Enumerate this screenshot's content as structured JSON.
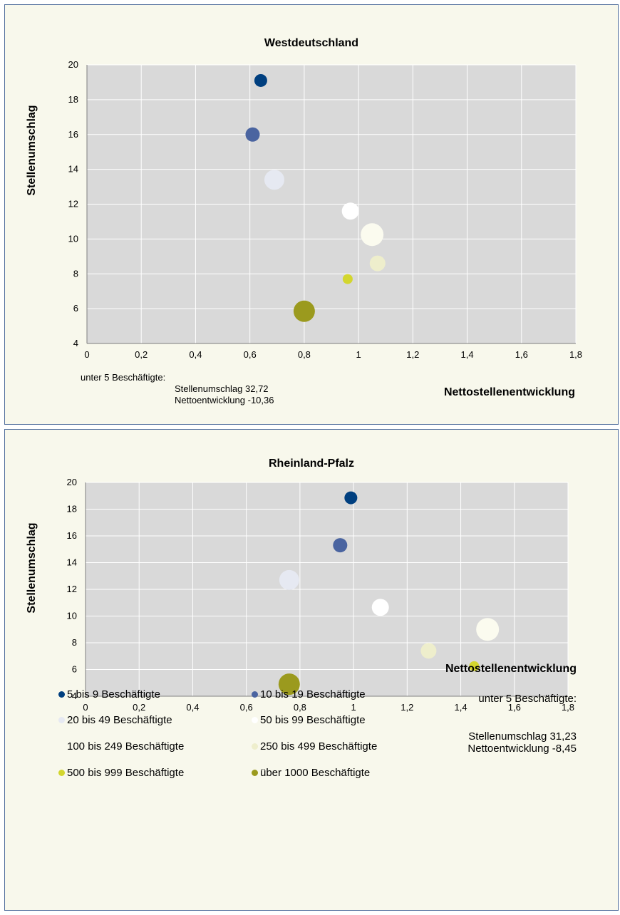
{
  "series_styles": [
    {
      "name": "5 bis 9 Beschäftigte",
      "color": "#003f7f",
      "size": 9
    },
    {
      "name": "10 bis 19 Beschäftigte",
      "color": "#4a64a0",
      "size": 10
    },
    {
      "name": "20 bis 49 Beschäftigte",
      "color": "#e6e9f2",
      "size": 14
    },
    {
      "name": "50 bis 99 Beschäftigte",
      "color": "#ffffff",
      "size": 12
    },
    {
      "name": "100 bis 249 Beschäftigte",
      "color": "#fbfbef",
      "size": 16
    },
    {
      "name": "250 bis 499 Beschäftigte",
      "color": "#eeeecc",
      "size": 11
    },
    {
      "name": "500 bis 999 Beschäftigte",
      "color": "#d3d62e",
      "size": 7
    },
    {
      "name": "über 1000 Beschäftigte",
      "color": "#9b9a1e",
      "size": 15
    }
  ],
  "chart_data": [
    {
      "type": "scatter",
      "title": "Westdeutschland",
      "xlabel": "Nettostellenentwicklung",
      "ylabel": "Stellenumschlag",
      "xlim": [
        0,
        1.8
      ],
      "ylim": [
        4,
        20
      ],
      "x_ticks": [
        "0",
        "0,2",
        "0,4",
        "0,6",
        "0,8",
        "1",
        "1,2",
        "1,4",
        "1,6",
        "1,8"
      ],
      "y_ticks": [
        "4",
        "6",
        "8",
        "10",
        "12",
        "14",
        "16",
        "18",
        "20"
      ],
      "grid": true,
      "series": [
        {
          "name": "5 bis 9 Beschäftigte",
          "x": 0.64,
          "y": 19.1
        },
        {
          "name": "10 bis 19 Beschäftigte",
          "x": 0.61,
          "y": 16.0
        },
        {
          "name": "20 bis 49 Beschäftigte",
          "x": 0.69,
          "y": 13.4
        },
        {
          "name": "50 bis 99 Beschäftigte",
          "x": 0.97,
          "y": 11.6
        },
        {
          "name": "100 bis 249 Beschäftigte",
          "x": 1.05,
          "y": 10.25
        },
        {
          "name": "250 bis 499 Beschäftigte",
          "x": 1.07,
          "y": 8.6
        },
        {
          "name": "500 bis 999 Beschäftigte",
          "x": 0.96,
          "y": 7.7
        },
        {
          "name": "über 1000 Beschäftigte",
          "x": 0.8,
          "y": 5.85
        }
      ],
      "annotation": {
        "header": "unter 5 Beschäftigte:",
        "line1": "Stellenumschlag 32,72",
        "line2": "Nettoentwicklung -10,36"
      }
    },
    {
      "type": "scatter",
      "title": "Rheinland-Pfalz",
      "xlabel": "Nettostellenentwicklung",
      "ylabel": "Stellenumschlag",
      "xlim": [
        0,
        1.8
      ],
      "ylim": [
        4,
        20
      ],
      "x_ticks": [
        "0",
        "0,2",
        "0,4",
        "0,6",
        "0,8",
        "1",
        "1,2",
        "1,4",
        "1,6",
        "1,8"
      ],
      "y_ticks": [
        "4",
        "6",
        "8",
        "10",
        "12",
        "14",
        "16",
        "18",
        "20"
      ],
      "grid": true,
      "series": [
        {
          "name": "5 bis 9 Beschäftigte",
          "x": 0.99,
          "y": 18.85
        },
        {
          "name": "10 bis 19 Beschäftigte",
          "x": 0.95,
          "y": 15.3
        },
        {
          "name": "20 bis 49 Beschäftigte",
          "x": 0.76,
          "y": 12.7
        },
        {
          "name": "50 bis 99 Beschäftigte",
          "x": 1.1,
          "y": 10.65
        },
        {
          "name": "100 bis 249 Beschäftigte",
          "x": 1.5,
          "y": 9.0
        },
        {
          "name": "250 bis 499 Beschäftigte",
          "x": 1.28,
          "y": 7.4
        },
        {
          "name": "500 bis 999 Beschäftigte",
          "x": 1.45,
          "y": 6.25
        },
        {
          "name": "über 1000 Beschäftigte",
          "x": 0.76,
          "y": 4.9
        }
      ],
      "annotation": {
        "header": "unter 5 Beschäftigte:",
        "line1": "Stellenumschlag 31,23",
        "line2": "Nettoentwicklung -8,45"
      }
    }
  ]
}
